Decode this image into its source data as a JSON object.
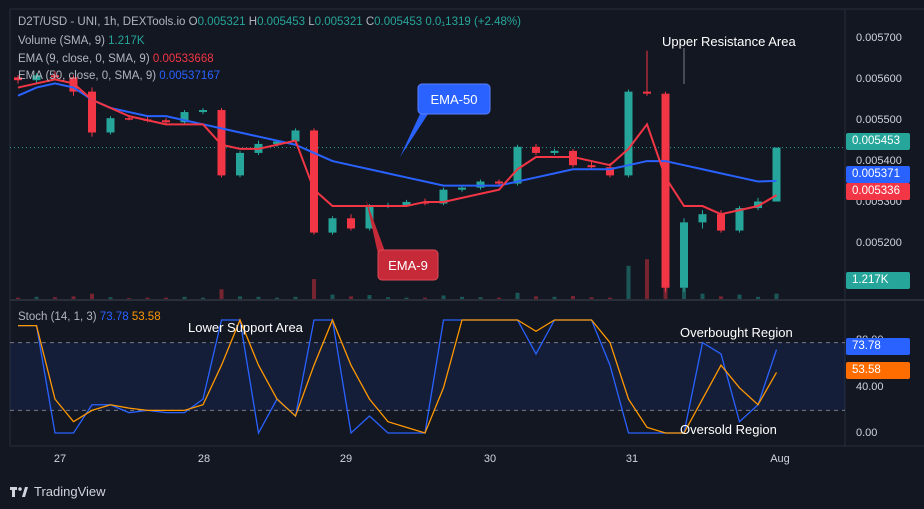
{
  "header": {
    "symbol": "D2T/USD - UNI, 1h, DEXTools.io",
    "open_label": "O",
    "open": "0.005321",
    "high_label": "H",
    "high": "0.005453",
    "low_label": "L",
    "low": "0.005321",
    "close_label": "C",
    "close": "0.005453",
    "change": "0.0₁1319 (+2.48%)"
  },
  "indicators": {
    "volume": {
      "label": "Volume (SMA, 9)",
      "value": "1.217K"
    },
    "ema9": {
      "label": "EMA (9, close, 0, SMA, 9)",
      "value": "0.00533668"
    },
    "ema50": {
      "label": "EMA (50, close, 0, SMA, 9)",
      "value": "0.00537167"
    },
    "stoch": {
      "label": "Stoch (14, 1, 3)",
      "k": "73.78",
      "d": "53.58"
    }
  },
  "annotations": {
    "upper_resistance": "Upper Resistance Area",
    "lower_support": "Lower Support Area",
    "overbought": "Overbought Region",
    "oversold": "Oversold Region",
    "ema50_callout": "EMA-50",
    "ema9_callout": "EMA-9"
  },
  "badges": {
    "price": "0.005453",
    "ema50": "0.005371",
    "ema9": "0.005336",
    "volume": "1.217K",
    "stoch_k": "73.78",
    "stoch_d": "53.58"
  },
  "colors": {
    "background": "#131722",
    "bull": "#26a69a",
    "bear": "#f23645",
    "ema9": "#f23645",
    "ema50": "#2962ff",
    "stoch_k": "#2962ff",
    "stoch_d": "#ff9800"
  },
  "footer": {
    "brand": "TradingView"
  },
  "chart_data": {
    "type": "candlestick",
    "timeframe": "1h",
    "x_tick_labels": [
      "27",
      "28",
      "29",
      "30",
      "31",
      "Aug"
    ],
    "price_axis": {
      "ticks": [
        "0.005700",
        "0.005600",
        "0.005500",
        "0.005400",
        "0.005300",
        "0.005200"
      ],
      "range": [
        0.00508,
        0.00578
      ]
    },
    "candles": [
      {
        "o": 0.005625,
        "h": 0.00563,
        "l": 0.00561,
        "c": 0.005618
      },
      {
        "o": 0.005618,
        "h": 0.005635,
        "l": 0.00561,
        "c": 0.00563
      },
      {
        "o": 0.00563,
        "h": 0.00564,
        "l": 0.00562,
        "c": 0.005625
      },
      {
        "o": 0.005625,
        "h": 0.00563,
        "l": 0.00558,
        "c": 0.00559
      },
      {
        "o": 0.00559,
        "h": 0.0056,
        "l": 0.00548,
        "c": 0.00549
      },
      {
        "o": 0.00549,
        "h": 0.00553,
        "l": 0.005485,
        "c": 0.005525
      },
      {
        "o": 0.005525,
        "h": 0.00553,
        "l": 0.00552,
        "c": 0.005522
      },
      {
        "o": 0.005522,
        "h": 0.00553,
        "l": 0.005515,
        "c": 0.00552
      },
      {
        "o": 0.00552,
        "h": 0.005525,
        "l": 0.005512,
        "c": 0.005515
      },
      {
        "o": 0.005515,
        "h": 0.005545,
        "l": 0.005512,
        "c": 0.00554
      },
      {
        "o": 0.00554,
        "h": 0.00555,
        "l": 0.005535,
        "c": 0.005545
      },
      {
        "o": 0.005545,
        "h": 0.00555,
        "l": 0.00538,
        "c": 0.005385
      },
      {
        "o": 0.005385,
        "h": 0.005445,
        "l": 0.00538,
        "c": 0.00544
      },
      {
        "o": 0.00544,
        "h": 0.00547,
        "l": 0.005435,
        "c": 0.005462
      },
      {
        "o": 0.005462,
        "h": 0.00547,
        "l": 0.005455,
        "c": 0.005468
      },
      {
        "o": 0.005468,
        "h": 0.0055,
        "l": 0.005462,
        "c": 0.005495
      },
      {
        "o": 0.005495,
        "h": 0.0055,
        "l": 0.00524,
        "c": 0.005245
      },
      {
        "o": 0.005245,
        "h": 0.005285,
        "l": 0.00524,
        "c": 0.00528
      },
      {
        "o": 0.00528,
        "h": 0.00529,
        "l": 0.00525,
        "c": 0.005255
      },
      {
        "o": 0.005255,
        "h": 0.005315,
        "l": 0.00525,
        "c": 0.00531
      },
      {
        "o": 0.00531,
        "h": 0.005318,
        "l": 0.005305,
        "c": 0.005312
      },
      {
        "o": 0.005312,
        "h": 0.005325,
        "l": 0.005308,
        "c": 0.00532
      },
      {
        "o": 0.00532,
        "h": 0.005328,
        "l": 0.005312,
        "c": 0.005316
      },
      {
        "o": 0.005316,
        "h": 0.005355,
        "l": 0.005312,
        "c": 0.00535
      },
      {
        "o": 0.00535,
        "h": 0.00536,
        "l": 0.005345,
        "c": 0.005355
      },
      {
        "o": 0.005355,
        "h": 0.005375,
        "l": 0.00535,
        "c": 0.00537
      },
      {
        "o": 0.00537,
        "h": 0.005375,
        "l": 0.00536,
        "c": 0.005365
      },
      {
        "o": 0.005365,
        "h": 0.00546,
        "l": 0.00536,
        "c": 0.005455
      },
      {
        "o": 0.005455,
        "h": 0.005462,
        "l": 0.005435,
        "c": 0.00544
      },
      {
        "o": 0.00544,
        "h": 0.00545,
        "l": 0.005435,
        "c": 0.005445
      },
      {
        "o": 0.005445,
        "h": 0.00545,
        "l": 0.005405,
        "c": 0.00541
      },
      {
        "o": 0.00541,
        "h": 0.00542,
        "l": 0.0054,
        "c": 0.005405
      },
      {
        "o": 0.005405,
        "h": 0.005415,
        "l": 0.00538,
        "c": 0.005385
      },
      {
        "o": 0.005385,
        "h": 0.005595,
        "l": 0.00538,
        "c": 0.00559
      },
      {
        "o": 0.00559,
        "h": 0.00569,
        "l": 0.00558,
        "c": 0.005585
      },
      {
        "o": 0.005585,
        "h": 0.00559,
        "l": 0.0051,
        "c": 0.00511
      },
      {
        "o": 0.00511,
        "h": 0.00528,
        "l": 0.0051,
        "c": 0.00527
      },
      {
        "o": 0.00527,
        "h": 0.0053,
        "l": 0.005255,
        "c": 0.00529
      },
      {
        "o": 0.00529,
        "h": 0.0053,
        "l": 0.005245,
        "c": 0.00525
      },
      {
        "o": 0.00525,
        "h": 0.00531,
        "l": 0.005245,
        "c": 0.005305
      },
      {
        "o": 0.005305,
        "h": 0.00533,
        "l": 0.0053,
        "c": 0.005321
      },
      {
        "o": 0.005321,
        "h": 0.005453,
        "l": 0.005321,
        "c": 0.005453
      }
    ],
    "ema9": [
      0.0056,
      0.00561,
      0.00562,
      0.00561,
      0.00557,
      0.00555,
      0.00553,
      0.00552,
      0.00551,
      0.00551,
      0.00551,
      0.00546,
      0.00545,
      0.00545,
      0.00546,
      0.00547,
      0.00535,
      0.00531,
      0.00531,
      0.00531,
      0.00531,
      0.00531,
      0.00532,
      0.00532,
      0.00533,
      0.00534,
      0.00535,
      0.0054,
      0.00543,
      0.00543,
      0.00543,
      0.00542,
      0.00541,
      0.00545,
      0.00551,
      0.00538,
      0.00531,
      0.00531,
      0.00529,
      0.0053,
      0.00531,
      0.00533668
    ],
    "ema50": [
      0.00558,
      0.0056,
      0.00561,
      0.0056,
      0.00557,
      0.00555,
      0.00554,
      0.00553,
      0.00553,
      0.00552,
      0.00551,
      0.0055,
      0.00549,
      0.00548,
      0.00547,
      0.00546,
      0.00544,
      0.00542,
      0.00541,
      0.0054,
      0.00539,
      0.00538,
      0.00537,
      0.00536,
      0.00536,
      0.00536,
      0.00536,
      0.00537,
      0.00538,
      0.00539,
      0.0054,
      0.0054,
      0.0054,
      0.00541,
      0.00542,
      0.00542,
      0.00541,
      0.0054,
      0.00539,
      0.00538,
      0.00537,
      0.00537167
    ],
    "volume": [
      0.3,
      0.5,
      0.4,
      0.6,
      1.2,
      0.4,
      0.2,
      0.3,
      0.3,
      0.5,
      0.3,
      2.2,
      0.6,
      0.5,
      0.3,
      0.5,
      4.5,
      1.0,
      0.6,
      0.9,
      0.4,
      0.3,
      0.3,
      0.8,
      0.5,
      0.4,
      0.3,
      1.4,
      0.6,
      0.5,
      0.7,
      0.4,
      0.3,
      7.5,
      9.0,
      9.5,
      2.5,
      1.2,
      0.6,
      1.0,
      0.5,
      1.217
    ],
    "volume_unit": "K",
    "stoch": {
      "axis_ticks": [
        "80.00",
        "40.00",
        "0.00"
      ],
      "bands": [
        80,
        20
      ],
      "k": [
        95,
        95,
        0,
        0,
        25,
        25,
        18,
        20,
        18,
        18,
        30,
        100,
        100,
        0,
        30,
        15,
        100,
        100,
        0,
        15,
        0,
        0,
        0,
        100,
        100,
        100,
        100,
        100,
        70,
        100,
        100,
        100,
        60,
        0,
        0,
        0,
        0,
        80,
        70,
        10,
        25,
        73.78
      ],
      "d": [
        95,
        95,
        30,
        10,
        20,
        25,
        22,
        20,
        20,
        20,
        25,
        60,
        100,
        60,
        30,
        15,
        60,
        100,
        60,
        30,
        10,
        5,
        0,
        40,
        100,
        100,
        100,
        100,
        90,
        100,
        100,
        100,
        80,
        30,
        5,
        0,
        0,
        30,
        60,
        40,
        25,
        53.58
      ]
    }
  }
}
